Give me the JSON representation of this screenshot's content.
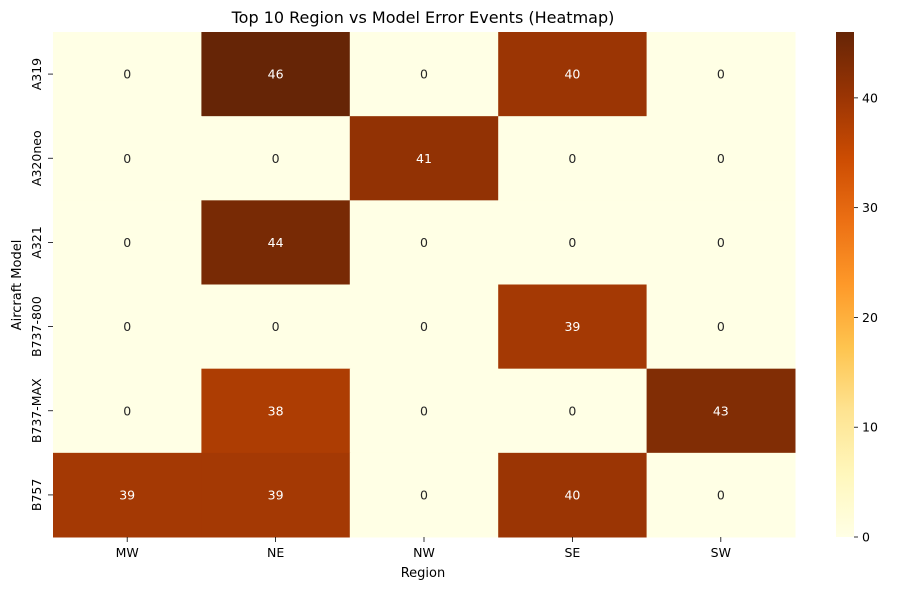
{
  "chart_data": {
    "type": "heatmap",
    "title": "Top 10 Region vs Model Error Events (Heatmap)",
    "xlabel": "Region",
    "ylabel": "Aircraft Model",
    "x_categories": [
      "MW",
      "NE",
      "NW",
      "SE",
      "SW"
    ],
    "y_categories": [
      "A319",
      "A320neo",
      "A321",
      "B737-800",
      "B737-MAX",
      "B757"
    ],
    "values": [
      [
        0,
        46,
        0,
        40,
        0
      ],
      [
        0,
        0,
        41,
        0,
        0
      ],
      [
        0,
        44,
        0,
        0,
        0
      ],
      [
        0,
        0,
        0,
        39,
        0
      ],
      [
        0,
        38,
        0,
        0,
        43
      ],
      [
        39,
        39,
        0,
        40,
        0
      ]
    ],
    "annotated": true,
    "colormap": "YlOrBr",
    "vmin": 0,
    "vmax": 46,
    "colorbar_ticks": [
      0,
      10,
      20,
      30,
      40
    ],
    "colors": {
      "low": "#ffffe5",
      "high": "#662506",
      "annotation_light": "#ffffff",
      "annotation_dark": "#262626"
    }
  }
}
